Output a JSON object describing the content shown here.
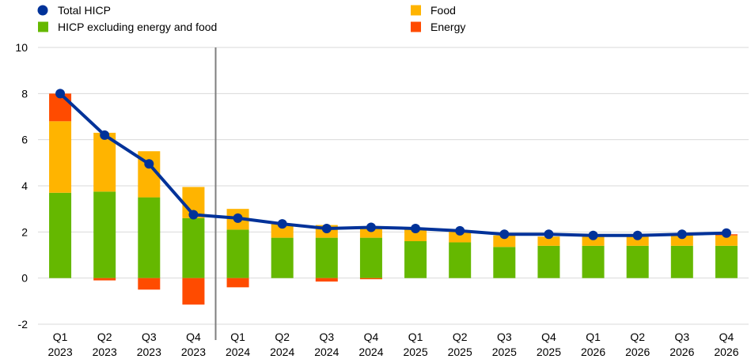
{
  "chart_data": {
    "type": "bar",
    "stacked": true,
    "title": "",
    "xlabel": "",
    "ylabel": "",
    "ylim": [
      -2,
      10
    ],
    "yticks": [
      -2,
      0,
      2,
      4,
      6,
      8,
      10
    ],
    "grid": true,
    "legend_position": "top",
    "separator_after_category": 3,
    "categories": [
      [
        "Q1",
        "2023"
      ],
      [
        "Q2",
        "2023"
      ],
      [
        "Q3",
        "2023"
      ],
      [
        "Q4",
        "2023"
      ],
      [
        "Q1",
        "2024"
      ],
      [
        "Q2",
        "2024"
      ],
      [
        "Q3",
        "2024"
      ],
      [
        "Q4",
        "2024"
      ],
      [
        "Q1",
        "2025"
      ],
      [
        "Q2",
        "2025"
      ],
      [
        "Q3",
        "2025"
      ],
      [
        "Q4",
        "2025"
      ],
      [
        "Q1",
        "2026"
      ],
      [
        "Q2",
        "2026"
      ],
      [
        "Q3",
        "2026"
      ],
      [
        "Q4",
        "2026"
      ]
    ],
    "series": [
      {
        "name": "HICP excluding energy and food",
        "kind": "bar",
        "color": "#65b800",
        "values": [
          3.7,
          3.75,
          3.5,
          2.6,
          2.1,
          1.75,
          1.75,
          1.75,
          1.6,
          1.55,
          1.35,
          1.4,
          1.4,
          1.4,
          1.4,
          1.4
        ]
      },
      {
        "name": "Food",
        "kind": "bar",
        "color": "#ffb400",
        "values": [
          3.1,
          2.55,
          2.0,
          1.35,
          0.9,
          0.6,
          0.55,
          0.5,
          0.55,
          0.5,
          0.5,
          0.4,
          0.4,
          0.4,
          0.45,
          0.45
        ]
      },
      {
        "name": "Energy",
        "kind": "bar",
        "color": "#ff4b00",
        "values": [
          1.2,
          -0.1,
          -0.5,
          -1.15,
          -0.4,
          0.0,
          -0.15,
          -0.05,
          0.0,
          0.0,
          0.0,
          0.0,
          0.0,
          0.0,
          0.0,
          0.05
        ]
      },
      {
        "name": "Total HICP",
        "kind": "line",
        "color": "#003299",
        "values": [
          8.0,
          6.2,
          4.95,
          2.75,
          2.6,
          2.35,
          2.15,
          2.2,
          2.15,
          2.05,
          1.9,
          1.9,
          1.85,
          1.85,
          1.9,
          1.95
        ]
      }
    ],
    "legend": [
      {
        "name": "Total HICP",
        "marker": "circle",
        "color": "#003299"
      },
      {
        "name": "HICP excluding energy and food",
        "marker": "square",
        "color": "#65b800"
      },
      {
        "name": "Food",
        "marker": "square",
        "color": "#ffb400"
      },
      {
        "name": "Energy",
        "marker": "square",
        "color": "#ff4b00"
      }
    ]
  }
}
